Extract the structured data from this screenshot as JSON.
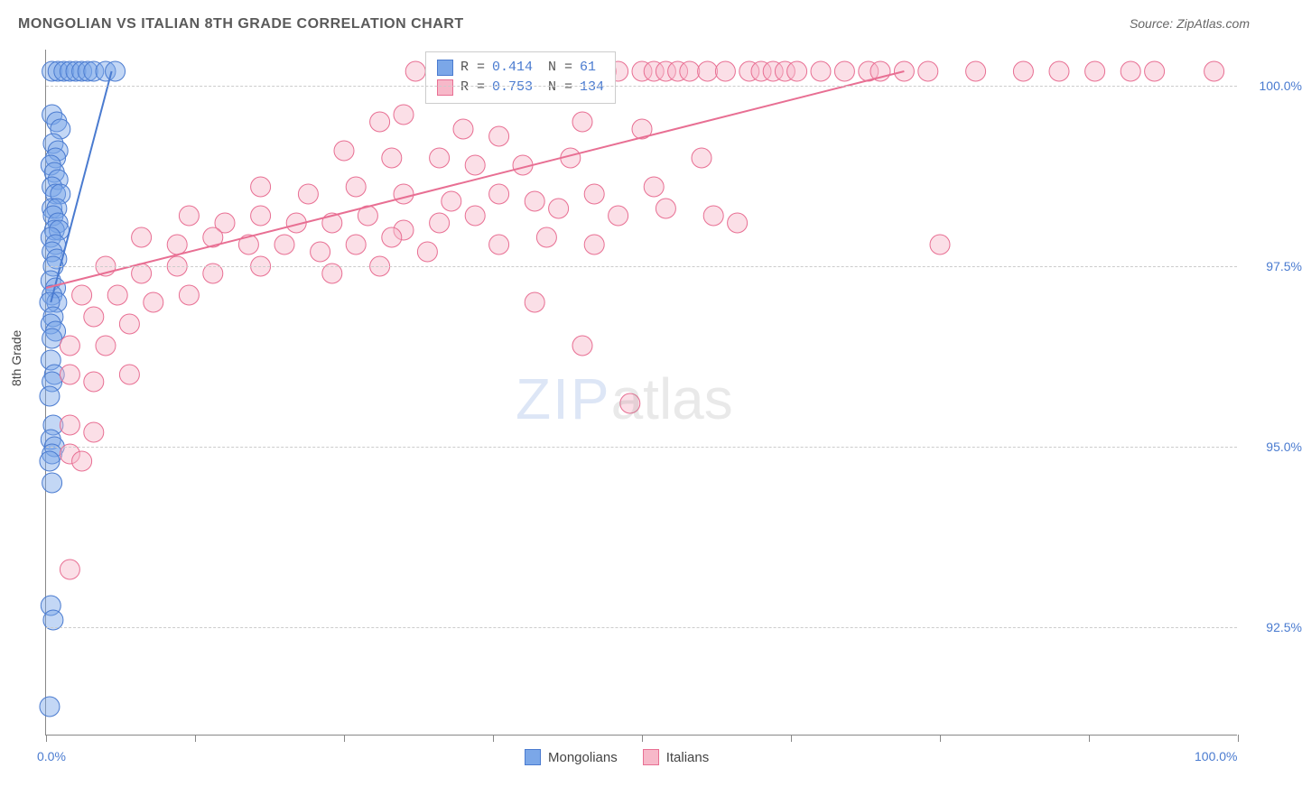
{
  "title": "MONGOLIAN VS ITALIAN 8TH GRADE CORRELATION CHART",
  "source": "Source: ZipAtlas.com",
  "ylabel": "8th Grade",
  "watermark_a": "ZIP",
  "watermark_b": "atlas",
  "chart": {
    "type": "scatter",
    "plot_bg": "#ffffff",
    "grid_color": "#cccccc",
    "axis_color": "#888888",
    "label_color": "#4a7bd0",
    "xlim": [
      0,
      100
    ],
    "ylim": [
      91,
      100.5
    ],
    "xticks": [
      0,
      12.5,
      25,
      37.5,
      50,
      62.5,
      75,
      87.5,
      100
    ],
    "xtick_labels": {
      "0": "0.0%",
      "100": "100.0%"
    },
    "yticks": [
      92.5,
      95.0,
      97.5,
      100.0
    ],
    "ytick_labels": [
      "92.5%",
      "95.0%",
      "97.5%",
      "100.0%"
    ],
    "marker_radius": 11,
    "marker_opacity": 0.45,
    "line_width": 2,
    "series": [
      {
        "name": "Mongolians",
        "color_fill": "#7ba7e8",
        "color_stroke": "#4a7bd0",
        "R": "0.414",
        "N": "61",
        "trend": {
          "x1": 0.4,
          "y1": 97.0,
          "x2": 5.5,
          "y2": 100.2
        },
        "points": [
          [
            0.5,
            100.2
          ],
          [
            1.0,
            100.2
          ],
          [
            1.5,
            100.2
          ],
          [
            2.0,
            100.2
          ],
          [
            2.5,
            100.2
          ],
          [
            3.0,
            100.2
          ],
          [
            3.5,
            100.2
          ],
          [
            4.0,
            100.2
          ],
          [
            5.0,
            100.2
          ],
          [
            5.8,
            100.2
          ],
          [
            0.5,
            99.6
          ],
          [
            0.9,
            99.5
          ],
          [
            1.2,
            99.4
          ],
          [
            0.6,
            99.2
          ],
          [
            1.0,
            99.1
          ],
          [
            0.8,
            99.0
          ],
          [
            0.4,
            98.9
          ],
          [
            0.7,
            98.8
          ],
          [
            1.0,
            98.7
          ],
          [
            0.5,
            98.6
          ],
          [
            0.8,
            98.5
          ],
          [
            1.2,
            98.5
          ],
          [
            0.5,
            98.3
          ],
          [
            0.9,
            98.3
          ],
          [
            0.6,
            98.2
          ],
          [
            1.0,
            98.1
          ],
          [
            0.7,
            98.0
          ],
          [
            1.1,
            98.0
          ],
          [
            0.4,
            97.9
          ],
          [
            0.8,
            97.8
          ],
          [
            0.5,
            97.7
          ],
          [
            0.9,
            97.6
          ],
          [
            0.6,
            97.5
          ],
          [
            0.4,
            97.3
          ],
          [
            0.8,
            97.2
          ],
          [
            0.5,
            97.1
          ],
          [
            0.9,
            97.0
          ],
          [
            0.3,
            97.0
          ],
          [
            0.6,
            96.8
          ],
          [
            0.4,
            96.7
          ],
          [
            0.8,
            96.6
          ],
          [
            0.5,
            96.5
          ],
          [
            0.4,
            96.2
          ],
          [
            0.7,
            96.0
          ],
          [
            0.5,
            95.9
          ],
          [
            0.3,
            95.7
          ],
          [
            0.6,
            95.3
          ],
          [
            0.4,
            95.1
          ],
          [
            0.7,
            95.0
          ],
          [
            0.5,
            94.9
          ],
          [
            0.3,
            94.8
          ],
          [
            0.5,
            94.5
          ],
          [
            0.4,
            92.8
          ],
          [
            0.6,
            92.6
          ],
          [
            0.3,
            91.4
          ]
        ]
      },
      {
        "name": "Italians",
        "color_fill": "#f7b8c9",
        "color_stroke": "#e86f93",
        "R": "0.753",
        "N": "134",
        "trend": {
          "x1": 0,
          "y1": 97.2,
          "x2": 72,
          "y2": 100.2
        },
        "points": [
          [
            31,
            100.2
          ],
          [
            33,
            100.2
          ],
          [
            35,
            100.2
          ],
          [
            37,
            100.2
          ],
          [
            40,
            100.2
          ],
          [
            42,
            100.2
          ],
          [
            43,
            100.2
          ],
          [
            44.5,
            100.2
          ],
          [
            46,
            100.2
          ],
          [
            47,
            100.2
          ],
          [
            48,
            100.2
          ],
          [
            50,
            100.2
          ],
          [
            51,
            100.2
          ],
          [
            52,
            100.2
          ],
          [
            53,
            100.2
          ],
          [
            54,
            100.2
          ],
          [
            55.5,
            100.2
          ],
          [
            57,
            100.2
          ],
          [
            59,
            100.2
          ],
          [
            60,
            100.2
          ],
          [
            61,
            100.2
          ],
          [
            62,
            100.2
          ],
          [
            63,
            100.2
          ],
          [
            65,
            100.2
          ],
          [
            67,
            100.2
          ],
          [
            69,
            100.2
          ],
          [
            70,
            100.2
          ],
          [
            72,
            100.2
          ],
          [
            74,
            100.2
          ],
          [
            78,
            100.2
          ],
          [
            82,
            100.2
          ],
          [
            85,
            100.2
          ],
          [
            88,
            100.2
          ],
          [
            91,
            100.2
          ],
          [
            93,
            100.2
          ],
          [
            98,
            100.2
          ],
          [
            28,
            99.5
          ],
          [
            30,
            99.6
          ],
          [
            35,
            99.4
          ],
          [
            38,
            99.3
          ],
          [
            45,
            99.5
          ],
          [
            50,
            99.4
          ],
          [
            25,
            99.1
          ],
          [
            29,
            99.0
          ],
          [
            33,
            99.0
          ],
          [
            36,
            98.9
          ],
          [
            40,
            98.9
          ],
          [
            44,
            99.0
          ],
          [
            55,
            99.0
          ],
          [
            18,
            98.6
          ],
          [
            22,
            98.5
          ],
          [
            26,
            98.6
          ],
          [
            30,
            98.5
          ],
          [
            34,
            98.4
          ],
          [
            38,
            98.5
          ],
          [
            41,
            98.4
          ],
          [
            46,
            98.5
          ],
          [
            51,
            98.6
          ],
          [
            12,
            98.2
          ],
          [
            15,
            98.1
          ],
          [
            18,
            98.2
          ],
          [
            21,
            98.1
          ],
          [
            24,
            98.1
          ],
          [
            27,
            98.2
          ],
          [
            30,
            98.0
          ],
          [
            33,
            98.1
          ],
          [
            36,
            98.2
          ],
          [
            43,
            98.3
          ],
          [
            48,
            98.2
          ],
          [
            52,
            98.3
          ],
          [
            56,
            98.2
          ],
          [
            58,
            98.1
          ],
          [
            8,
            97.9
          ],
          [
            11,
            97.8
          ],
          [
            14,
            97.9
          ],
          [
            17,
            97.8
          ],
          [
            20,
            97.8
          ],
          [
            23,
            97.7
          ],
          [
            26,
            97.8
          ],
          [
            29,
            97.9
          ],
          [
            32,
            97.7
          ],
          [
            38,
            97.8
          ],
          [
            42,
            97.9
          ],
          [
            46,
            97.8
          ],
          [
            75,
            97.8
          ],
          [
            5,
            97.5
          ],
          [
            8,
            97.4
          ],
          [
            11,
            97.5
          ],
          [
            14,
            97.4
          ],
          [
            18,
            97.5
          ],
          [
            24,
            97.4
          ],
          [
            28,
            97.5
          ],
          [
            3,
            97.1
          ],
          [
            6,
            97.1
          ],
          [
            9,
            97.0
          ],
          [
            12,
            97.1
          ],
          [
            41,
            97.0
          ],
          [
            4,
            96.8
          ],
          [
            7,
            96.7
          ],
          [
            2,
            96.4
          ],
          [
            5,
            96.4
          ],
          [
            45,
            96.4
          ],
          [
            2,
            96.0
          ],
          [
            4,
            95.9
          ],
          [
            7,
            96.0
          ],
          [
            49,
            95.6
          ],
          [
            2,
            95.3
          ],
          [
            4,
            95.2
          ],
          [
            2,
            94.9
          ],
          [
            3,
            94.8
          ],
          [
            2,
            93.3
          ]
        ]
      }
    ]
  },
  "legend_top": [
    {
      "swatch_fill": "#7ba7e8",
      "swatch_stroke": "#4a7bd0",
      "R_label": "R =",
      "R": "0.414",
      "N_label": "N =",
      "N": " 61"
    },
    {
      "swatch_fill": "#f7b8c9",
      "swatch_stroke": "#e86f93",
      "R_label": "R =",
      "R": "0.753",
      "N_label": "N =",
      "N": "134"
    }
  ],
  "legend_bottom": [
    {
      "swatch_fill": "#7ba7e8",
      "swatch_stroke": "#4a7bd0",
      "label": "Mongolians"
    },
    {
      "swatch_fill": "#f7b8c9",
      "swatch_stroke": "#e86f93",
      "label": "Italians"
    }
  ]
}
